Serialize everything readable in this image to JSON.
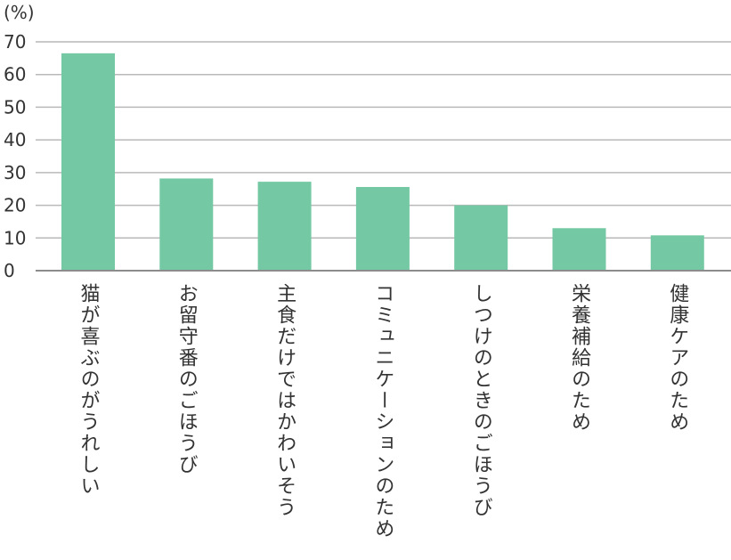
{
  "chart_data": {
    "type": "bar",
    "unit_label": "(%)",
    "categories": [
      "猫が喜ぶのがうれしい",
      "お留守番のごほうび",
      "主食だけではかわいそう",
      "コミュニケーションのため",
      "しつけのときのごほうび",
      "栄養補給のため",
      "健康ケアのため"
    ],
    "values": [
      66.5,
      28.2,
      27.2,
      25.6,
      20.0,
      13.0,
      10.8
    ],
    "ylim": [
      0,
      70
    ],
    "yticks": [
      "0",
      "10",
      "20",
      "30",
      "40",
      "50",
      "60",
      "70"
    ],
    "grid": true,
    "bar_color": "#74c8a3",
    "grid_color": "#b9b9b9",
    "axis_color": "#8c8c8c"
  }
}
